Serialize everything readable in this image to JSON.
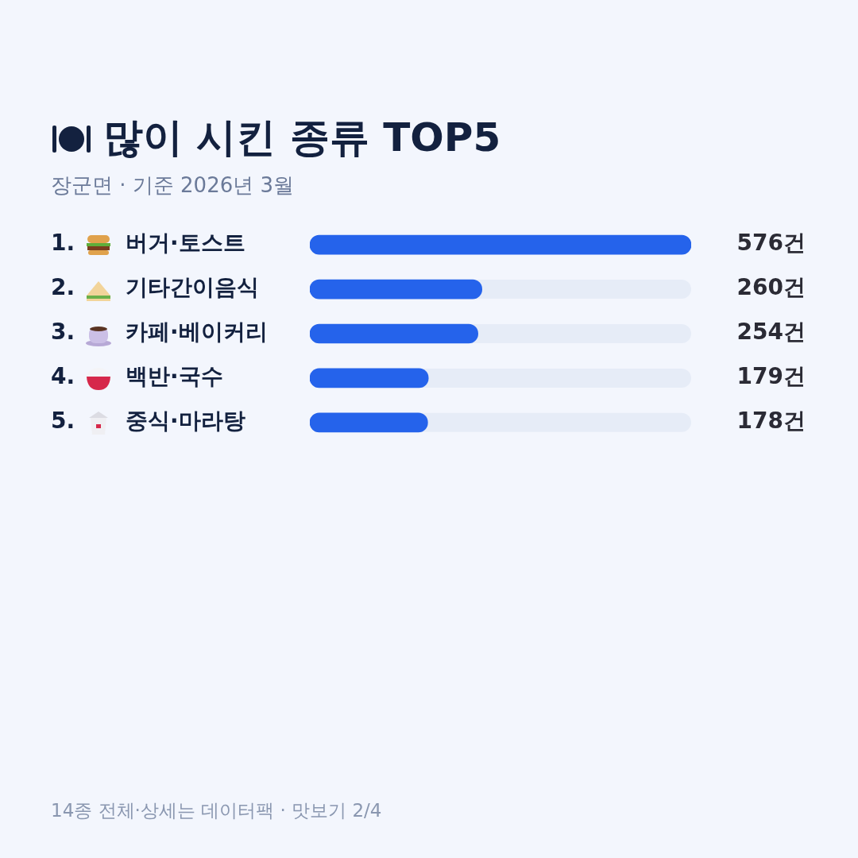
{
  "chart_data": {
    "type": "bar",
    "orientation": "horizontal",
    "title": "많이 시킨 종류 TOP5",
    "subtitle": "장군면 · 기준 2026년 3월",
    "categories": [
      "1. 버거·토스트",
      "2. 기타간이음식",
      "3. 카페·베이커리",
      "4. 백반·국수",
      "5. 중식·마라탕"
    ],
    "values": [
      576,
      260,
      254,
      179,
      178
    ],
    "value_labels": [
      "576건",
      "260건",
      "254건",
      "179건",
      "178건"
    ],
    "color": "#2563eb",
    "grid": false,
    "legend": false,
    "tick_labels": "y",
    "annotations": [
      "14종 전체·상세는 데이터팩 · 맛보기 2/4"
    ]
  }
}
